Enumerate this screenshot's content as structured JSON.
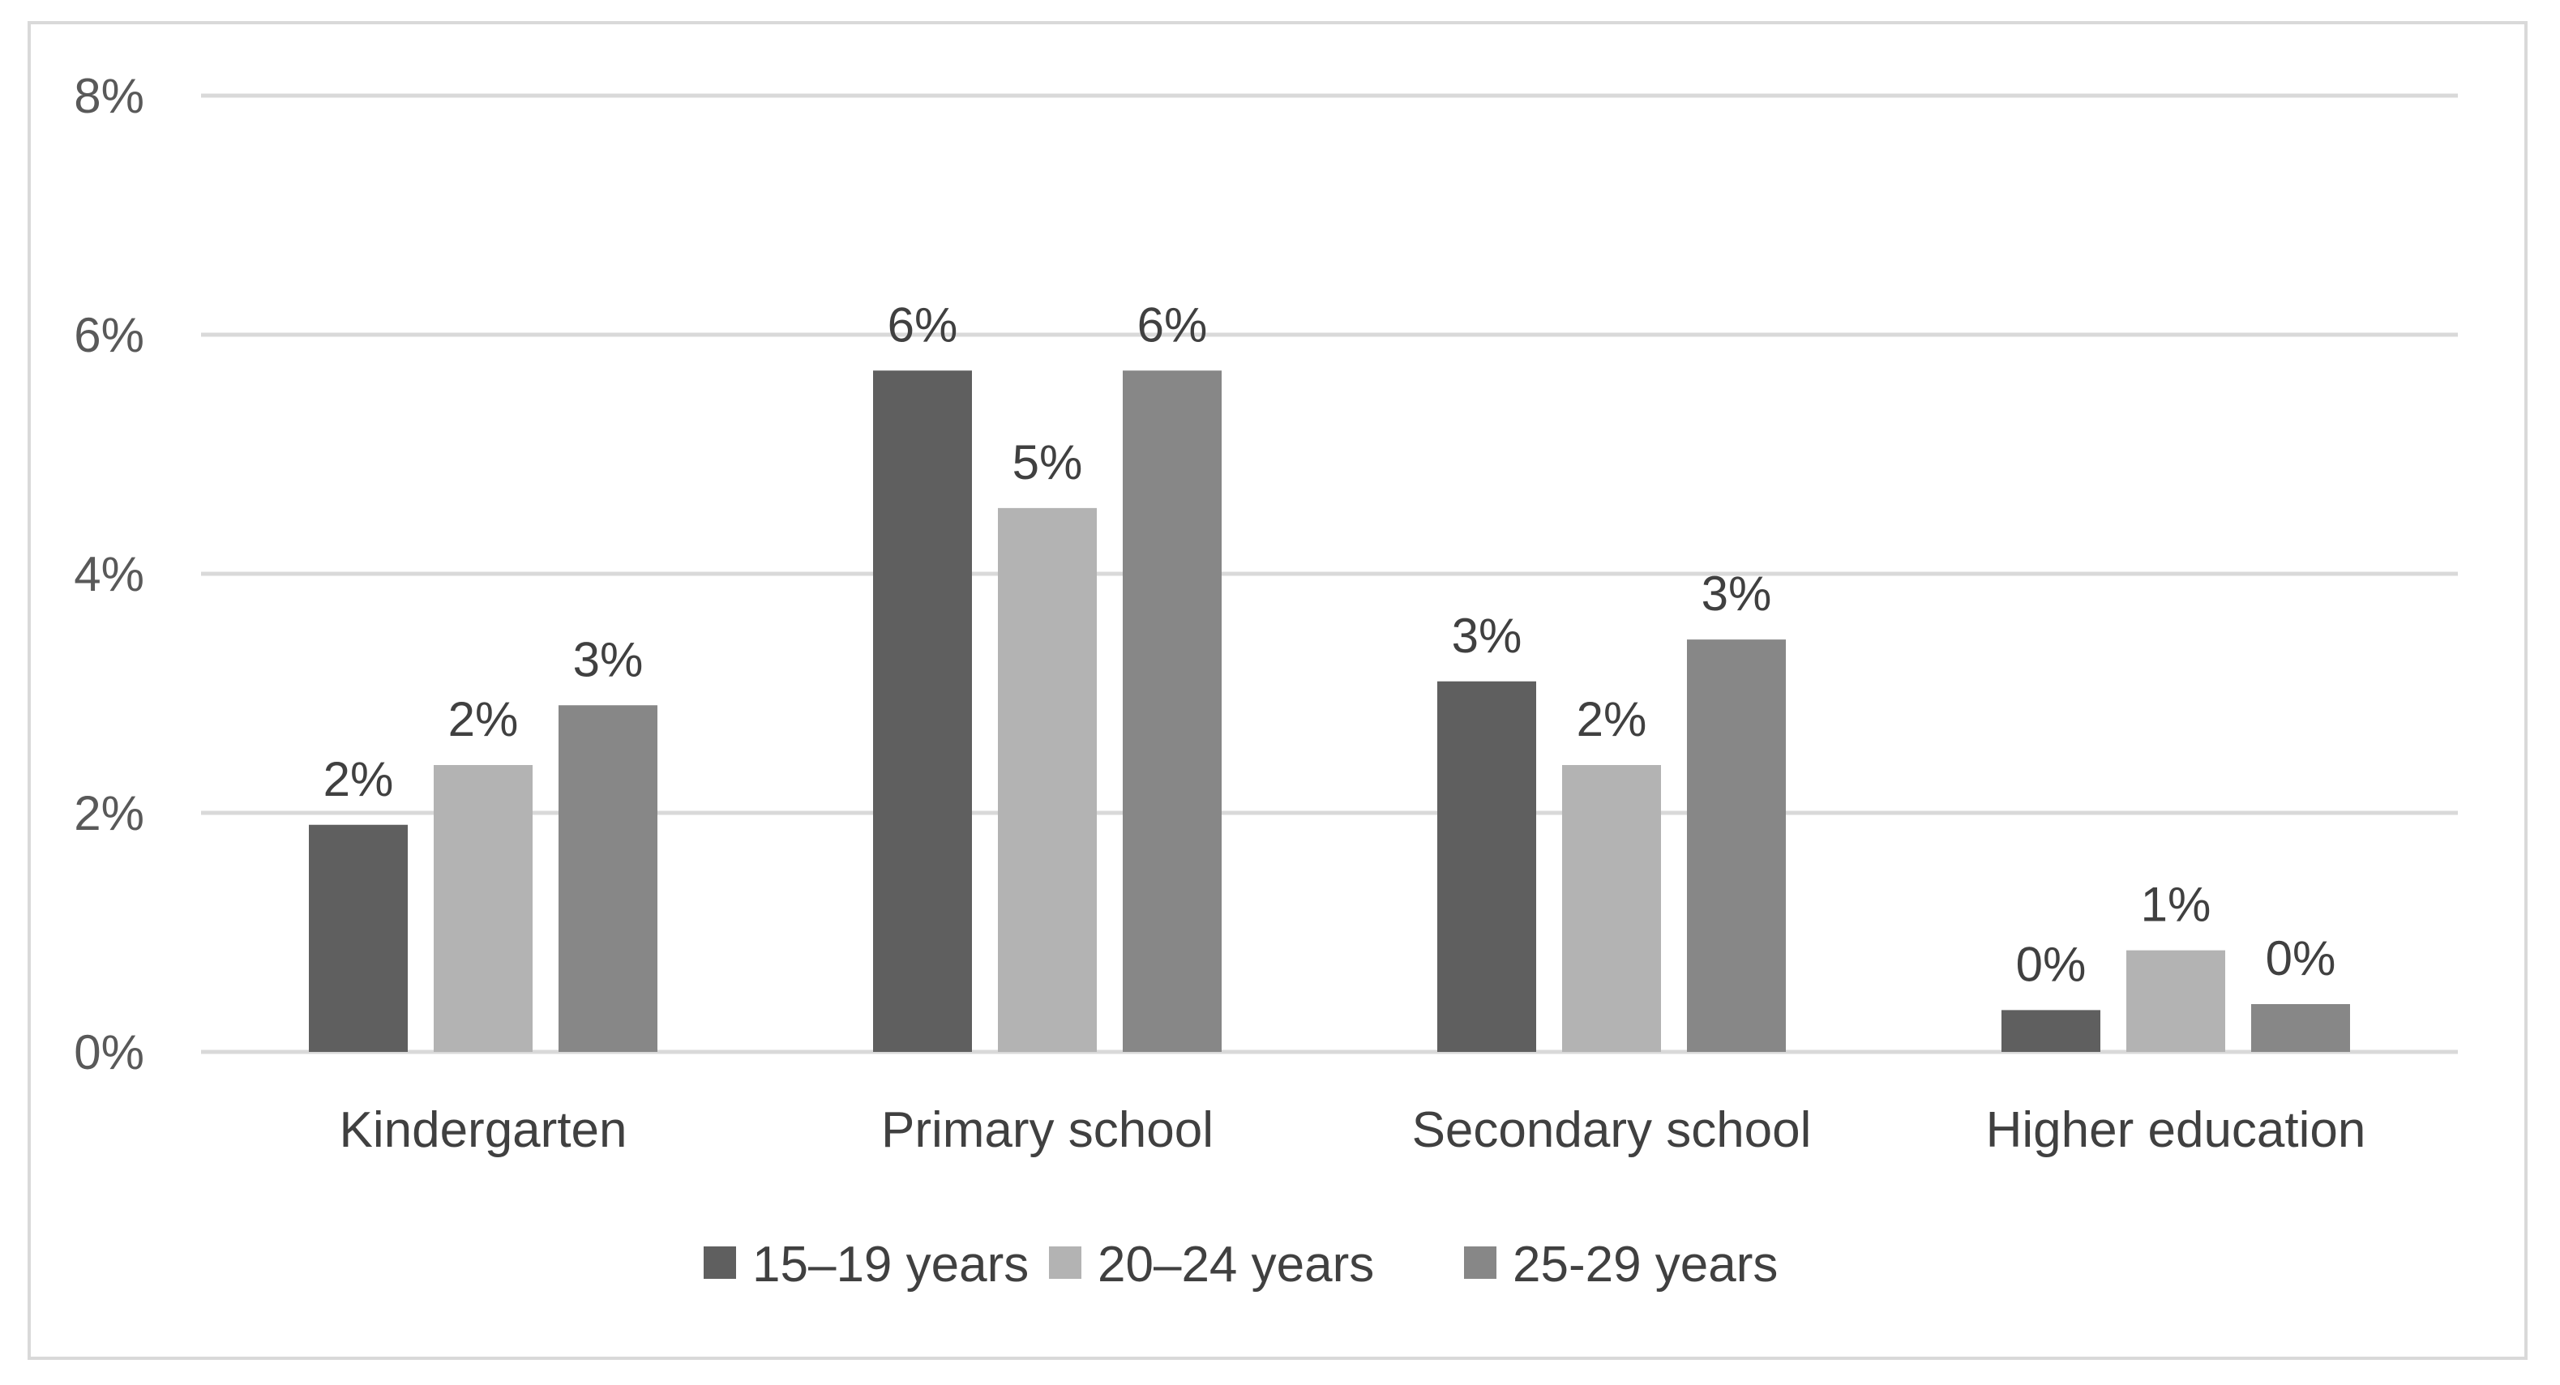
{
  "chart_data": {
    "type": "bar",
    "title": "",
    "xlabel": "",
    "ylabel": "",
    "categories": [
      "Kindergarten",
      "Primary school",
      "Secondary school",
      "Higher education"
    ],
    "series": [
      {
        "name": "15–19 years",
        "color": "#5f5f5f",
        "values": [
          1.9,
          5.7,
          3.1,
          0.35
        ],
        "labels": [
          "2%",
          "6%",
          "3%",
          "0%"
        ]
      },
      {
        "name": "20–24 years",
        "color": "#b3b3b3",
        "values": [
          2.4,
          4.55,
          2.4,
          0.85
        ],
        "labels": [
          "2%",
          "5%",
          "2%",
          "1%"
        ]
      },
      {
        "name": "25-29 years",
        "color": "#878787",
        "values": [
          2.9,
          5.7,
          3.45,
          0.4
        ],
        "labels": [
          "3%",
          "6%",
          "3%",
          "0%"
        ]
      }
    ],
    "ylim": [
      0,
      8
    ],
    "yticks": [
      0,
      2,
      4,
      6,
      8
    ],
    "ytick_labels": [
      "0%",
      "2%",
      "4%",
      "6%",
      "8%"
    ],
    "grid": true,
    "legend_position": "bottom",
    "gridline_color": "#d9d9d9"
  }
}
